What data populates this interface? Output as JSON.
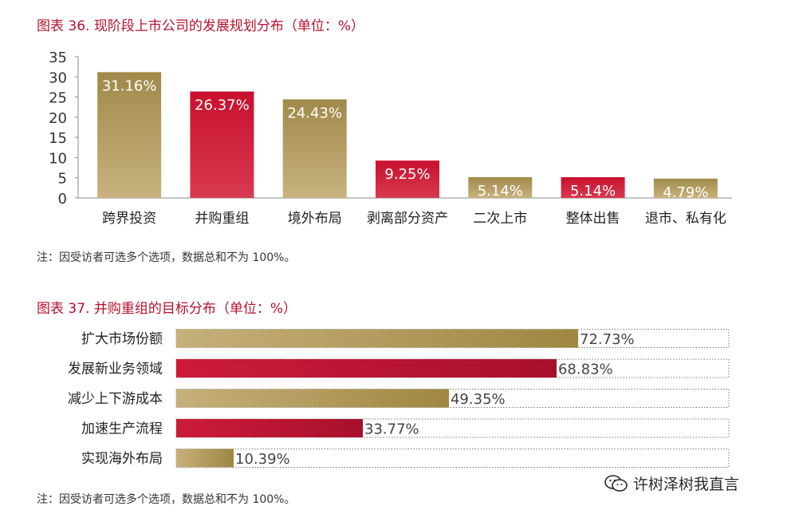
{
  "chart_data": [
    {
      "type": "bar",
      "title": "图表 36. 现阶段上市公司的发展规划分布（单位：%）",
      "note": "注：因受访者可选多个选项，数据总和不为 100%。",
      "categories": [
        "跨界投资",
        "并购重组",
        "境外布局",
        "剥离部分资产",
        "二次上市",
        "整体出售",
        "退市、私有化"
      ],
      "values": [
        31.16,
        26.37,
        24.43,
        9.25,
        5.14,
        5.14,
        4.79
      ],
      "value_labels": [
        "31.16%",
        "26.37%",
        "24.43%",
        "9.25%",
        "5.14%",
        "5.14%",
        "4.79%"
      ],
      "bar_colors": [
        "gold",
        "red",
        "gold",
        "red",
        "gold",
        "red",
        "gold"
      ],
      "ylim": [
        0,
        35
      ],
      "yticks": [
        0,
        5,
        10,
        15,
        20,
        25,
        30,
        35
      ],
      "xlabel": "",
      "ylabel": "",
      "grid": false
    },
    {
      "type": "bar",
      "orientation": "horizontal",
      "title": "图表 37. 并购重组的目标分布（单位：%）",
      "note": "注：因受访者可选多个选项，数据总和不为 100%。",
      "categories": [
        "扩大市场份额",
        "发展新业务领域",
        "减少上下游成本",
        "加速生产流程",
        "实现海外布局"
      ],
      "values": [
        72.73,
        68.83,
        49.35,
        33.77,
        10.39
      ],
      "value_labels": [
        "72.73%",
        "68.83%",
        "49.35%",
        "33.77%",
        "10.39%"
      ],
      "bar_colors": [
        "gold",
        "red",
        "gold",
        "red",
        "gold"
      ],
      "xlim": [
        0,
        100
      ],
      "grid": false
    }
  ],
  "watermark": {
    "text": "许树泽树我直言",
    "icon": "wechat-icon"
  },
  "colors": {
    "title_red": "#b5122f",
    "gold_top": "#a08a4a",
    "gold_bottom": "#c8b27e",
    "red_top": "#c8102e",
    "red_bottom": "#d83a4f",
    "gold_left": "#c6b07a",
    "gold_right": "#9e8742",
    "red_left": "#cc1b3a",
    "red_right": "#a8102c"
  }
}
